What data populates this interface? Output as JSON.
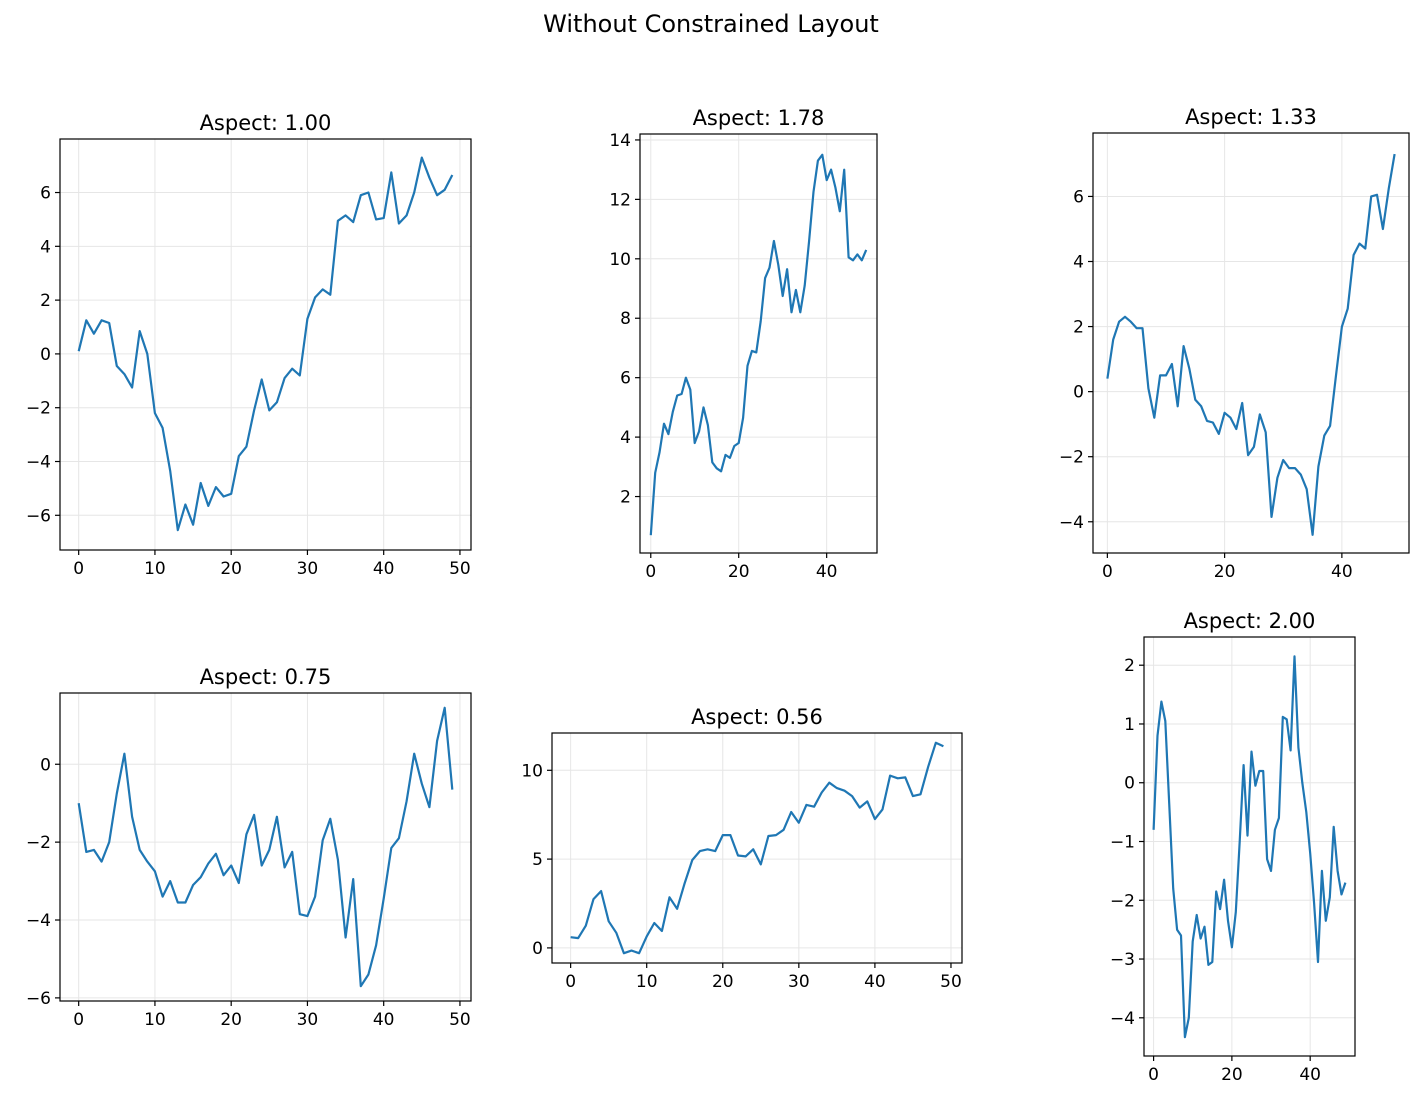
{
  "figure": {
    "title": "Without Constrained Layout"
  },
  "colors": {
    "line": "#1f77b4",
    "grid": "#e6e6e6",
    "axis": "#000000"
  },
  "chart_data": [
    {
      "type": "line",
      "title": "Aspect: 1.00",
      "grid": true,
      "xlim": [
        -2.45,
        51.45
      ],
      "ylim": [
        -7.29,
        7.99
      ],
      "xticks": [
        0,
        10,
        20,
        30,
        40,
        50
      ],
      "xtick_labels": [
        "0",
        "10",
        "20",
        "30",
        "40",
        "50"
      ],
      "yticks": [
        -6,
        -4,
        -2,
        0,
        2,
        4,
        6
      ],
      "ytick_labels": [
        "−6",
        "−4",
        "−2",
        "0",
        "2",
        "4",
        "6"
      ],
      "series": [
        {
          "x": [
            0,
            1,
            2,
            3,
            4,
            5,
            6,
            7,
            8,
            9,
            10,
            11,
            12,
            13,
            14,
            15,
            16,
            17,
            18,
            19,
            20,
            21,
            22,
            23,
            24,
            25,
            26,
            27,
            28,
            29,
            30,
            31,
            32,
            33,
            34,
            35,
            36,
            37,
            38,
            39,
            40,
            41,
            42,
            43,
            44,
            45,
            46,
            47,
            48,
            49
          ],
          "y": [
            0.1,
            1.25,
            0.75,
            1.25,
            1.15,
            -0.45,
            -0.75,
            -1.25,
            0.85,
            0.0,
            -2.2,
            -2.75,
            -4.35,
            -6.55,
            -5.6,
            -6.35,
            -4.8,
            -5.65,
            -4.95,
            -5.3,
            -5.2,
            -3.8,
            -3.45,
            -2.1,
            -0.95,
            -2.1,
            -1.8,
            -0.9,
            -0.55,
            -0.8,
            1.3,
            2.1,
            2.4,
            2.2,
            4.95,
            5.15,
            4.9,
            5.9,
            6.0,
            5.0,
            5.05,
            6.75,
            4.85,
            5.15,
            6.0,
            7.3,
            6.55,
            5.9,
            6.1,
            6.65
          ]
        }
      ]
    },
    {
      "type": "line",
      "title": "Aspect: 1.78",
      "grid": true,
      "xlim": [
        -2.45,
        51.45
      ],
      "ylim": [
        0.1,
        14.2
      ],
      "xticks": [
        0,
        20,
        40
      ],
      "xtick_labels": [
        "0",
        "20",
        "40"
      ],
      "yticks": [
        2,
        4,
        6,
        8,
        10,
        12,
        14
      ],
      "ytick_labels": [
        "2",
        "4",
        "6",
        "8",
        "10",
        "12",
        "14"
      ],
      "series": [
        {
          "x": [
            0,
            1,
            2,
            3,
            4,
            5,
            6,
            7,
            8,
            9,
            10,
            11,
            12,
            13,
            14,
            15,
            16,
            17,
            18,
            19,
            20,
            21,
            22,
            23,
            24,
            25,
            26,
            27,
            28,
            29,
            30,
            31,
            32,
            33,
            34,
            35,
            36,
            37,
            38,
            39,
            40,
            41,
            42,
            43,
            44,
            45,
            46,
            47,
            48,
            49
          ],
          "y": [
            0.7,
            2.8,
            3.5,
            4.45,
            4.1,
            4.85,
            5.4,
            5.45,
            6.0,
            5.6,
            3.8,
            4.2,
            5.0,
            4.4,
            3.15,
            2.95,
            2.85,
            3.4,
            3.3,
            3.7,
            3.8,
            4.65,
            6.4,
            6.9,
            6.85,
            7.9,
            9.35,
            9.7,
            10.6,
            9.8,
            8.75,
            9.65,
            8.2,
            8.95,
            8.2,
            9.1,
            10.6,
            12.25,
            13.3,
            13.5,
            12.65,
            13.0,
            12.4,
            11.6,
            13.0,
            10.05,
            9.95,
            10.15,
            9.95,
            10.3
          ]
        }
      ]
    },
    {
      "type": "line",
      "title": "Aspect: 1.33",
      "grid": true,
      "xlim": [
        -2.45,
        51.45
      ],
      "ylim": [
        -4.96,
        7.95
      ],
      "xticks": [
        0,
        20,
        40
      ],
      "xtick_labels": [
        "0",
        "20",
        "40"
      ],
      "yticks": [
        -4,
        -2,
        0,
        2,
        4,
        6
      ],
      "ytick_labels": [
        "−4",
        "−2",
        "0",
        "2",
        "4",
        "6"
      ],
      "series": [
        {
          "x": [
            0,
            1,
            2,
            3,
            4,
            5,
            6,
            7,
            8,
            9,
            10,
            11,
            12,
            13,
            14,
            15,
            16,
            17,
            18,
            19,
            20,
            21,
            22,
            23,
            24,
            25,
            26,
            27,
            28,
            29,
            30,
            31,
            32,
            33,
            34,
            35,
            36,
            37,
            38,
            39,
            40,
            41,
            42,
            43,
            44,
            45,
            46,
            47,
            48,
            49
          ],
          "y": [
            0.4,
            1.6,
            2.15,
            2.3,
            2.15,
            1.95,
            1.95,
            0.1,
            -0.8,
            0.5,
            0.5,
            0.85,
            -0.45,
            1.4,
            0.7,
            -0.25,
            -0.45,
            -0.9,
            -0.95,
            -1.3,
            -0.65,
            -0.8,
            -1.15,
            -0.35,
            -1.95,
            -1.7,
            -0.7,
            -1.25,
            -3.85,
            -2.65,
            -2.1,
            -2.35,
            -2.35,
            -2.55,
            -3.0,
            -4.4,
            -2.3,
            -1.35,
            -1.05,
            0.5,
            2.0,
            2.55,
            4.2,
            4.55,
            4.4,
            6.0,
            6.05,
            5.0,
            6.25,
            7.3
          ]
        }
      ]
    },
    {
      "type": "line",
      "title": "Aspect: 0.75",
      "grid": true,
      "xlim": [
        -2.45,
        51.45
      ],
      "ylim": [
        -6.08,
        1.83
      ],
      "xticks": [
        0,
        10,
        20,
        30,
        40,
        50
      ],
      "xtick_labels": [
        "0",
        "10",
        "20",
        "30",
        "40",
        "50"
      ],
      "yticks": [
        -6,
        -4,
        -2,
        0
      ],
      "ytick_labels": [
        "−6",
        "−4",
        "−2",
        "0"
      ],
      "series": [
        {
          "x": [
            0,
            1,
            2,
            3,
            4,
            5,
            6,
            7,
            8,
            9,
            10,
            11,
            12,
            13,
            14,
            15,
            16,
            17,
            18,
            19,
            20,
            21,
            22,
            23,
            24,
            25,
            26,
            27,
            28,
            29,
            30,
            31,
            32,
            33,
            34,
            35,
            36,
            37,
            38,
            39,
            40,
            41,
            42,
            43,
            44,
            45,
            46,
            47,
            48,
            49
          ],
          "y": [
            -1.0,
            -2.25,
            -2.2,
            -2.5,
            -2.0,
            -0.75,
            0.27,
            -1.35,
            -2.2,
            -2.5,
            -2.75,
            -3.4,
            -3.0,
            -3.55,
            -3.55,
            -3.1,
            -2.9,
            -2.55,
            -2.3,
            -2.85,
            -2.6,
            -3.05,
            -1.8,
            -1.3,
            -2.6,
            -2.2,
            -1.35,
            -2.65,
            -2.25,
            -3.85,
            -3.9,
            -3.4,
            -1.95,
            -1.4,
            -2.45,
            -4.45,
            -2.95,
            -5.7,
            -5.4,
            -4.65,
            -3.45,
            -2.15,
            -1.9,
            -0.95,
            0.27,
            -0.5,
            -1.1,
            0.6,
            1.45,
            -0.65
          ]
        }
      ]
    },
    {
      "type": "line",
      "title": "Aspect: 0.56",
      "grid": true,
      "xlim": [
        -2.45,
        51.45
      ],
      "ylim": [
        -0.85,
        12.1
      ],
      "xticks": [
        0,
        10,
        20,
        30,
        40,
        50
      ],
      "xtick_labels": [
        "0",
        "10",
        "20",
        "30",
        "40",
        "50"
      ],
      "yticks": [
        0,
        5,
        10
      ],
      "ytick_labels": [
        "0",
        "5",
        "10"
      ],
      "series": [
        {
          "x": [
            0,
            1,
            2,
            3,
            4,
            5,
            6,
            7,
            8,
            9,
            10,
            11,
            12,
            13,
            14,
            15,
            16,
            17,
            18,
            19,
            20,
            21,
            22,
            23,
            24,
            25,
            26,
            27,
            28,
            29,
            30,
            31,
            32,
            33,
            34,
            35,
            36,
            37,
            38,
            39,
            40,
            41,
            42,
            43,
            44,
            45,
            46,
            47,
            48,
            49
          ],
          "y": [
            0.6,
            0.55,
            1.25,
            2.75,
            3.2,
            1.5,
            0.85,
            -0.3,
            -0.15,
            -0.3,
            0.65,
            1.4,
            0.95,
            2.85,
            2.2,
            3.65,
            4.95,
            5.45,
            5.55,
            5.45,
            6.35,
            6.35,
            5.2,
            5.15,
            5.55,
            4.7,
            6.3,
            6.35,
            6.65,
            7.65,
            7.05,
            8.05,
            7.95,
            8.75,
            9.3,
            9.0,
            8.85,
            8.55,
            7.9,
            8.25,
            7.25,
            7.8,
            9.7,
            9.55,
            9.6,
            8.55,
            8.65,
            10.2,
            11.55,
            11.35
          ]
        }
      ]
    },
    {
      "type": "line",
      "title": "Aspect: 2.00",
      "grid": true,
      "xlim": [
        -2.45,
        51.45
      ],
      "ylim": [
        -4.65,
        2.48
      ],
      "xticks": [
        0,
        20,
        40
      ],
      "xtick_labels": [
        "0",
        "20",
        "40"
      ],
      "yticks": [
        -4,
        -3,
        -2,
        -1,
        0,
        1,
        2
      ],
      "ytick_labels": [
        "−4",
        "−3",
        "−2",
        "−1",
        "0",
        "1",
        "2"
      ],
      "series": [
        {
          "x": [
            0,
            1,
            2,
            3,
            4,
            5,
            6,
            7,
            8,
            9,
            10,
            11,
            12,
            13,
            14,
            15,
            16,
            17,
            18,
            19,
            20,
            21,
            22,
            23,
            24,
            25,
            26,
            27,
            28,
            29,
            30,
            31,
            32,
            33,
            34,
            35,
            36,
            37,
            38,
            39,
            40,
            41,
            42,
            43,
            44,
            45,
            46,
            47,
            48,
            49
          ],
          "y": [
            -0.8,
            0.8,
            1.38,
            1.05,
            -0.35,
            -1.8,
            -2.5,
            -2.6,
            -4.33,
            -4.0,
            -2.7,
            -2.25,
            -2.65,
            -2.45,
            -3.1,
            -3.05,
            -1.85,
            -2.15,
            -1.65,
            -2.35,
            -2.8,
            -2.2,
            -1.0,
            0.3,
            -0.9,
            0.53,
            -0.05,
            0.2,
            0.2,
            -1.3,
            -1.5,
            -0.8,
            -0.6,
            1.12,
            1.08,
            0.55,
            2.15,
            0.6,
            0.0,
            -0.5,
            -1.2,
            -2.05,
            -3.05,
            -1.5,
            -2.35,
            -1.95,
            -0.75,
            -1.5,
            -1.9,
            -1.7
          ]
        }
      ]
    }
  ]
}
